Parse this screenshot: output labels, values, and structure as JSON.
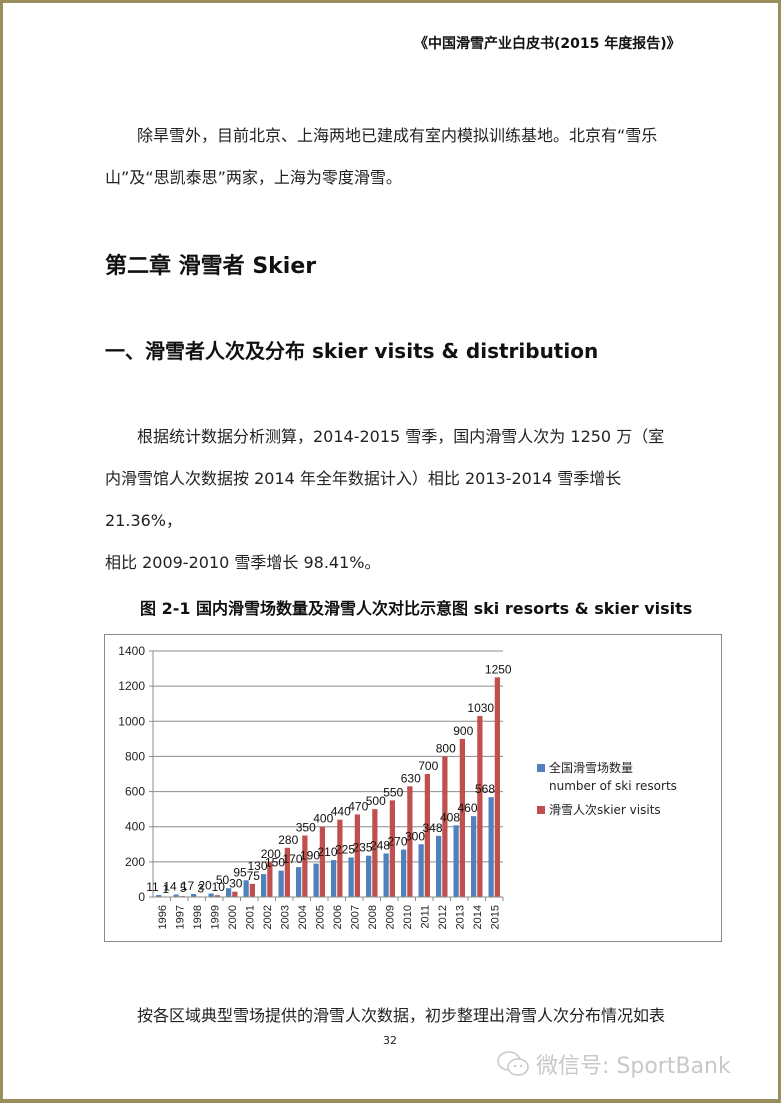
{
  "header": {
    "running_title": "《中国滑雪产业白皮书(2015 年度报告)》"
  },
  "paragraphs": {
    "p1_line1": "除旱雪外，目前北京、上海两地已建成有室内模拟训练基地。北京有“雪乐",
    "p1_line2": "山”及“思凯泰思”两家，上海为零度滑雪。",
    "p2_line1": "根据统计数据分析测算，2014-2015 雪季，国内滑雪人次为 1250 万（室",
    "p2_line2": "内滑雪馆人次数据按 2014 年全年数据计入）相比 2013-2014 雪季增长 21.36%，",
    "p2_line3": "相比 2009-2010 雪季增长 98.41%。",
    "p3_line1": "按各区域典型雪场提供的滑雪人次数据，初步整理出滑雪人次分布情况如表"
  },
  "headings": {
    "chapter": "第二章  滑雪者 Skier",
    "section": "一、滑雪者人次及分布 skier visits & distribution"
  },
  "figure": {
    "caption": "图 2-1 国内滑雪场数量及滑雪人次对比示意图 ski resorts & skier visits"
  },
  "chart_data": {
    "type": "bar",
    "title": "图 2-1 国内滑雪场数量及滑雪人次对比示意图 ski resorts & skier visits",
    "xlabel": "",
    "ylabel": "",
    "ylim": [
      0,
      1400
    ],
    "yticks": [
      0,
      200,
      400,
      600,
      800,
      1000,
      1200,
      1400
    ],
    "grid": true,
    "legend_position": "right",
    "categories": [
      "1996",
      "1997",
      "1998",
      "1999",
      "2000",
      "2001",
      "2002",
      "2003",
      "2004",
      "2005",
      "2006",
      "2007",
      "2008",
      "2009",
      "2010",
      "2011",
      "2012",
      "2013",
      "2014",
      "2015"
    ],
    "series": [
      {
        "name": "全国滑雪场数量 number of ski resorts",
        "legend_line1": "全国滑雪场数量",
        "legend_line2": "number of ski resorts",
        "color": "#4f81bd",
        "values": [
          11,
          14,
          17,
          20,
          50,
          95,
          130,
          150,
          170,
          190,
          210,
          225,
          235,
          248,
          270,
          300,
          348,
          408,
          460,
          568
        ]
      },
      {
        "name": "滑雪人次skier visits",
        "legend_line1": "滑雪人次skier visits",
        "color": "#c0504d",
        "values": [
          1,
          5,
          3,
          10,
          30,
          75,
          200,
          280,
          350,
          400,
          440,
          470,
          500,
          550,
          630,
          700,
          800,
          900,
          1030,
          1250
        ]
      }
    ]
  },
  "footer": {
    "page_number": "32",
    "watermark": "微信号: SportBank"
  },
  "colors": {
    "page_border": "#9a8f5c",
    "resorts_bar": "#4f81bd",
    "visits_bar": "#c0504d"
  }
}
